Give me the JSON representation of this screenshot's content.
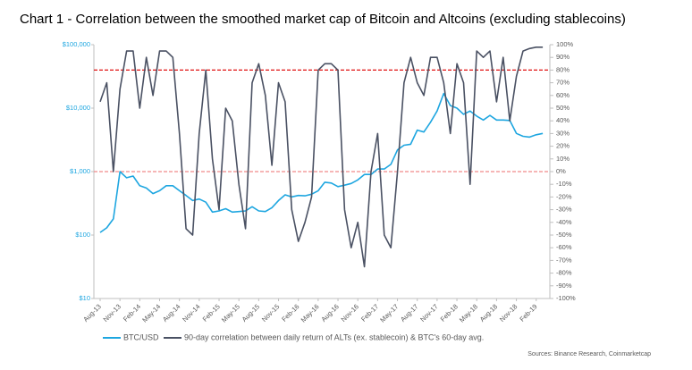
{
  "chart_data": {
    "type": "line",
    "title": "Chart 1 - Correlation between the smoothed market cap of Bitcoin and Altcoins (excluding stablecoins)",
    "source": "Sources: Binance Research, Coinmarketcap",
    "categories": [
      "Aug-13",
      null,
      null,
      "Nov-13",
      null,
      null,
      "Feb-14",
      null,
      null,
      "May-14",
      null,
      null,
      "Aug-14",
      null,
      null,
      "Nov-14",
      null,
      null,
      "Feb-15",
      null,
      null,
      "May-15",
      null,
      null,
      "Aug-15",
      null,
      null,
      "Nov-15",
      null,
      null,
      "Feb-16",
      null,
      null,
      "May-16",
      null,
      null,
      "Aug-16",
      null,
      null,
      "Nov-16",
      null,
      null,
      "Feb-17",
      null,
      null,
      "May-17",
      null,
      null,
      "Aug-17",
      null,
      null,
      "Nov-17",
      null,
      null,
      "Feb-18",
      null,
      null,
      "May-18",
      null,
      null,
      "Aug-18",
      null,
      null,
      "Nov-18",
      null,
      null,
      "Feb-19",
      null
    ],
    "log_y": true,
    "ylim": [
      10,
      100000
    ],
    "yticks": [
      {
        "value": 10,
        "label": "$10"
      },
      {
        "value": 100,
        "label": "$100"
      },
      {
        "value": 1000,
        "label": "$1,000"
      },
      {
        "value": 10000,
        "label": "$10,000"
      },
      {
        "value": 100000,
        "label": "$100,000"
      }
    ],
    "y2lim": [
      -100,
      100
    ],
    "y2ticks": [
      {
        "value": -100,
        "label": "-100%"
      },
      {
        "value": -90,
        "label": "-90%"
      },
      {
        "value": -80,
        "label": "-80%"
      },
      {
        "value": -70,
        "label": "-70%"
      },
      {
        "value": -60,
        "label": "-60%"
      },
      {
        "value": -50,
        "label": "-50%"
      },
      {
        "value": -40,
        "label": "-40%"
      },
      {
        "value": -30,
        "label": "-30%"
      },
      {
        "value": -20,
        "label": "-20%"
      },
      {
        "value": -10,
        "label": "-10%"
      },
      {
        "value": 0,
        "label": "0%"
      },
      {
        "value": 10,
        "label": "10%"
      },
      {
        "value": 20,
        "label": "20%"
      },
      {
        "value": 30,
        "label": "30%"
      },
      {
        "value": 40,
        "label": "40%"
      },
      {
        "value": 50,
        "label": "50%"
      },
      {
        "value": 60,
        "label": "60%"
      },
      {
        "value": 70,
        "label": "70%"
      },
      {
        "value": 80,
        "label": "80%"
      },
      {
        "value": 90,
        "label": "90%"
      },
      {
        "value": 100,
        "label": "100%"
      }
    ],
    "reference_lines": [
      {
        "value": 80,
        "color": "#e01010",
        "axis": "y2"
      },
      {
        "value": 0,
        "color": "#f08a8a",
        "axis": "y2"
      }
    ],
    "series": [
      {
        "name": "BTC/USD",
        "color": "#1ea6e0",
        "values": [
          110,
          130,
          180,
          1000,
          800,
          850,
          600,
          550,
          450,
          500,
          600,
          600,
          500,
          420,
          350,
          370,
          330,
          230,
          240,
          260,
          230,
          235,
          240,
          280,
          240,
          235,
          270,
          350,
          430,
          400,
          420,
          415,
          440,
          500,
          680,
          660,
          580,
          610,
          650,
          740,
          900,
          900,
          1100,
          1100,
          1300,
          2200,
          2600,
          2700,
          4500,
          4200,
          6000,
          9000,
          17000,
          11000,
          10000,
          8000,
          9000,
          7500,
          6500,
          7700,
          6500,
          6500,
          6400,
          4000,
          3600,
          3500,
          3800,
          4000
        ]
      },
      {
        "name": "90-day correlation between daily return of ALTs (ex. stablecoin) & BTC's 60-day avg.",
        "color": "#4a5163",
        "axis": "y2",
        "values": [
          55,
          70,
          0,
          65,
          95,
          95,
          50,
          90,
          60,
          95,
          95,
          90,
          30,
          -45,
          -50,
          30,
          80,
          10,
          -30,
          50,
          40,
          -10,
          -45,
          70,
          85,
          60,
          5,
          70,
          55,
          -30,
          -55,
          -40,
          -20,
          80,
          85,
          85,
          80,
          -30,
          -60,
          -40,
          -75,
          0,
          30,
          -50,
          -60,
          0,
          70,
          90,
          70,
          60,
          90,
          90,
          70,
          30,
          85,
          70,
          -10,
          95,
          90,
          95,
          55,
          90,
          40,
          75,
          95,
          97,
          98,
          98
        ]
      }
    ]
  }
}
